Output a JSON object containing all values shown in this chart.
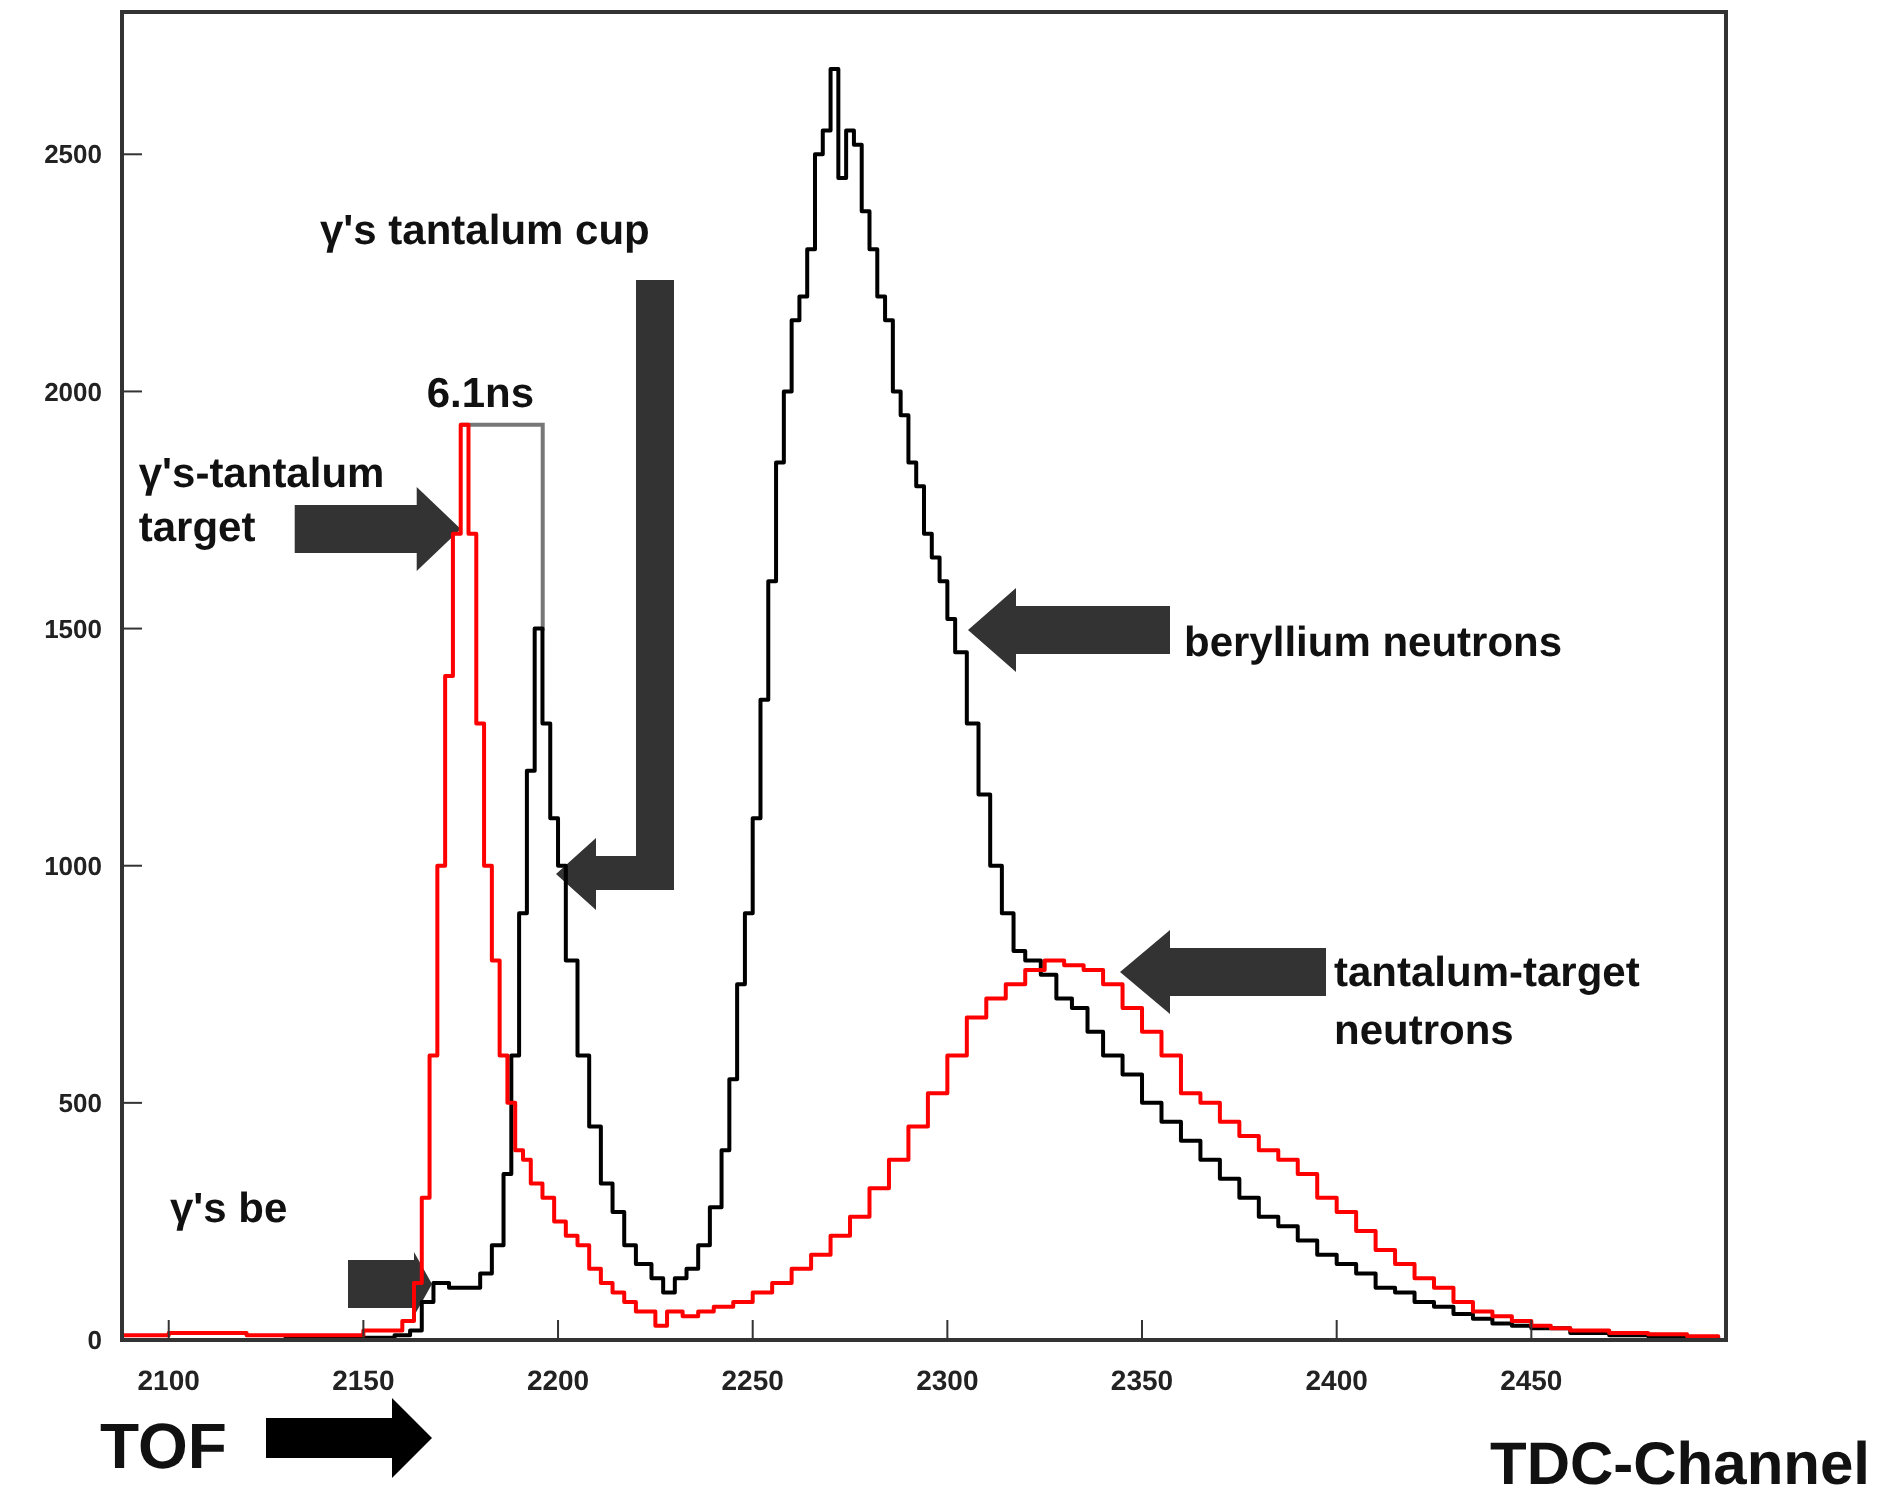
{
  "chart_data": {
    "type": "step",
    "xlabel": "TDC-Channel",
    "xlim": [
      2088,
      2500
    ],
    "ylim": [
      0,
      2800
    ],
    "xticks": [
      2100,
      2150,
      2200,
      2250,
      2300,
      2350,
      2400,
      2450
    ],
    "yticks": [
      0,
      500,
      1000,
      1500,
      2000,
      2500
    ],
    "grid": false,
    "series": [
      {
        "color": "#000000",
        "x": [
          2088,
          2130,
          2150,
          2158,
          2162,
          2165,
          2168,
          2172,
          2176,
          2180,
          2183,
          2186,
          2188,
          2190,
          2192,
          2194,
          2196,
          2198,
          2200,
          2202,
          2205,
          2208,
          2211,
          2214,
          2217,
          2220,
          2224,
          2227,
          2230,
          2233,
          2236,
          2239,
          2242,
          2244,
          2246,
          2248,
          2250,
          2252,
          2254,
          2256,
          2258,
          2260,
          2262,
          2264,
          2266,
          2268,
          2270,
          2272,
          2274,
          2276,
          2278,
          2280,
          2282,
          2284,
          2286,
          2288,
          2290,
          2292,
          2294,
          2296,
          2298,
          2300,
          2302,
          2305,
          2308,
          2311,
          2314,
          2317,
          2320,
          2324,
          2328,
          2332,
          2336,
          2340,
          2345,
          2350,
          2355,
          2360,
          2365,
          2370,
          2375,
          2380,
          2385,
          2390,
          2395,
          2400,
          2405,
          2410,
          2415,
          2420,
          2425,
          2430,
          2435,
          2440,
          2445,
          2450,
          2460,
          2470,
          2480,
          2490,
          2498
        ],
        "values": [
          0,
          5,
          5,
          10,
          20,
          80,
          120,
          110,
          110,
          140,
          200,
          350,
          600,
          900,
          1200,
          1500,
          1300,
          1100,
          1000,
          800,
          600,
          450,
          330,
          270,
          200,
          160,
          130,
          100,
          130,
          150,
          200,
          280,
          400,
          550,
          750,
          900,
          1100,
          1350,
          1600,
          1850,
          2000,
          2150,
          2200,
          2300,
          2500,
          2550,
          2680,
          2450,
          2550,
          2520,
          2380,
          2300,
          2200,
          2150,
          2000,
          1950,
          1850,
          1800,
          1700,
          1650,
          1600,
          1520,
          1450,
          1300,
          1150,
          1000,
          900,
          820,
          800,
          770,
          720,
          700,
          650,
          600,
          560,
          500,
          460,
          420,
          380,
          340,
          300,
          260,
          240,
          210,
          180,
          160,
          140,
          110,
          100,
          80,
          70,
          55,
          45,
          35,
          30,
          25,
          15,
          10,
          8,
          5,
          3
        ]
      },
      {
        "color": "#ff0000",
        "x": [
          2088,
          2100,
          2120,
          2140,
          2150,
          2155,
          2160,
          2163,
          2165,
          2167,
          2169,
          2171,
          2173,
          2175,
          2177,
          2179,
          2181,
          2183,
          2185,
          2187,
          2189,
          2191,
          2193,
          2196,
          2199,
          2202,
          2205,
          2208,
          2211,
          2214,
          2217,
          2220,
          2225,
          2228,
          2232,
          2236,
          2240,
          2245,
          2250,
          2255,
          2260,
          2265,
          2270,
          2275,
          2280,
          2285,
          2290,
          2295,
          2300,
          2305,
          2310,
          2315,
          2320,
          2325,
          2330,
          2335,
          2340,
          2345,
          2350,
          2355,
          2360,
          2365,
          2370,
          2375,
          2380,
          2385,
          2390,
          2395,
          2400,
          2405,
          2410,
          2415,
          2420,
          2425,
          2430,
          2435,
          2440,
          2445,
          2450,
          2455,
          2460,
          2470,
          2480,
          2490,
          2498
        ],
        "values": [
          10,
          15,
          10,
          10,
          20,
          20,
          40,
          120,
          300,
          600,
          1000,
          1400,
          1700,
          1930,
          1700,
          1300,
          1000,
          800,
          600,
          500,
          400,
          380,
          330,
          300,
          250,
          220,
          200,
          150,
          120,
          100,
          80,
          60,
          30,
          60,
          50,
          60,
          70,
          80,
          100,
          120,
          150,
          180,
          220,
          260,
          320,
          380,
          450,
          520,
          600,
          680,
          720,
          750,
          780,
          800,
          790,
          780,
          750,
          700,
          650,
          600,
          520,
          500,
          460,
          430,
          400,
          380,
          350,
          300,
          270,
          230,
          190,
          160,
          130,
          110,
          80,
          60,
          50,
          40,
          30,
          25,
          20,
          15,
          12,
          8,
          5
        ]
      }
    ],
    "annotations": [
      "γ's tantalum cup",
      {
        "text": "6.1ns",
        "x": 2175,
        "y": 1930
      },
      {
        "text": "γ's-tantalum\ntarget",
        "x": 2175,
        "y": 1710
      },
      "beryllium neutrons",
      "tantalum-target\nneutrons",
      "γ's be",
      "TOF"
    ]
  }
}
